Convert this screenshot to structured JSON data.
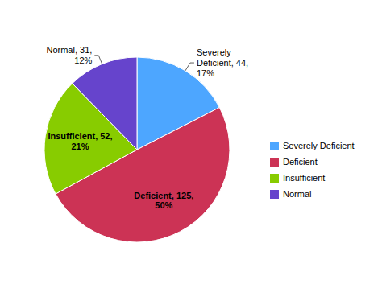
{
  "chart_data": {
    "type": "pie",
    "categories": [
      "Severely Deficient",
      "Deficient",
      "Insufficient",
      "Normal"
    ],
    "values": [
      44,
      125,
      52,
      31
    ],
    "value_labels": [
      "Severely\nDeficient, 44,\n17%",
      "Deficient, 125,\n50%",
      "Insufficient, 52,\n21%",
      "Normal, 31,\n12%"
    ],
    "colors": [
      "#4da6ff",
      "#cc3355",
      "#88cc00",
      "#6644cc"
    ],
    "data_labels": true,
    "legend": "right"
  }
}
